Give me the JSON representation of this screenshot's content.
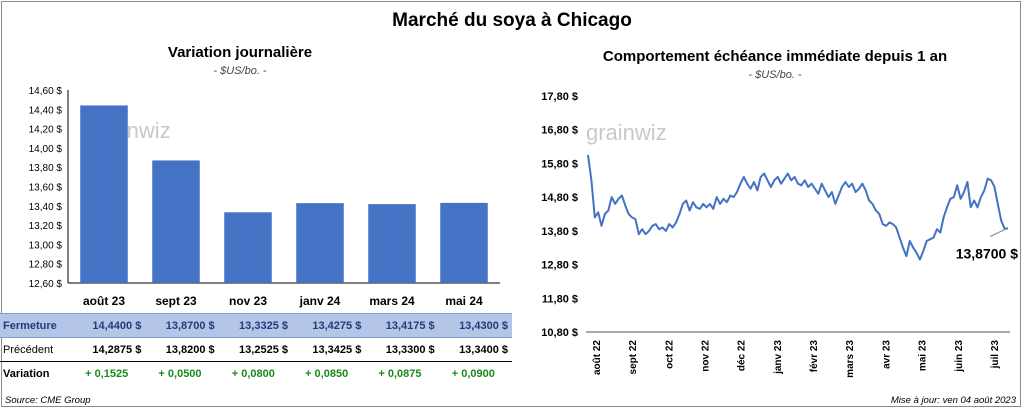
{
  "page": {
    "main_title": "Marché du soya à Chicago",
    "source": "Source: CME Group",
    "updated": "Mise à jour: ven 04 août 2023"
  },
  "colors": {
    "bar": "#4472c4",
    "line": "#4472c4",
    "close_row_bg": "#b4c6e7",
    "variation_green": "#1a8a1a"
  },
  "left_panel": {
    "title": "Variation  journalière",
    "unit": "- $US/bo. -",
    "watermark": "grainwiz",
    "table": {
      "rows": [
        {
          "label": "Fermeture",
          "values": [
            "14,4400  $",
            "13,8700  $",
            "13,3325  $",
            "13,4275  $",
            "13,4175  $",
            "13,4300  $"
          ]
        },
        {
          "label": "Précédent",
          "values": [
            "14,2875  $",
            "13,8200  $",
            "13,2525  $",
            "13,3425  $",
            "13,3300  $",
            "13,3400  $"
          ]
        },
        {
          "label": "Variation",
          "values": [
            "+ 0,1525",
            "+ 0,0500",
            "+ 0,0800",
            "+ 0,0850",
            "+ 0,0875",
            "+ 0,0900"
          ]
        }
      ]
    }
  },
  "right_panel": {
    "title": "Comportement  échéance immédiate depuis 1 an",
    "unit": "- $US/bo. -",
    "watermark": "grainwiz",
    "last_value_label": "13,8700 $"
  },
  "chart_data": [
    {
      "type": "bar",
      "categories": [
        "août 23",
        "sept 23",
        "nov 23",
        "janv 24",
        "mars 24",
        "mai 24"
      ],
      "values": [
        14.44,
        13.87,
        13.3325,
        13.4275,
        13.4175,
        13.43
      ],
      "ylim": [
        12.6,
        14.6
      ],
      "yticks": [
        "12,60 $",
        "12,80 $",
        "13,00 $",
        "13,20 $",
        "13,40 $",
        "13,60 $",
        "13,80 $",
        "14,00 $",
        "14,20 $",
        "14,40 $",
        "14,60 $"
      ],
      "grid": false
    },
    {
      "type": "line",
      "x_labels": [
        "août 22",
        "sept 22",
        "oct 22",
        "nov 22",
        "déc 22",
        "janv 23",
        "févr 23",
        "mars 23",
        "avr 23",
        "mai 23",
        "juin 23",
        "juil 23"
      ],
      "ylim": [
        10.8,
        17.8
      ],
      "yticks": [
        "10,80 $",
        "11,80 $",
        "12,80 $",
        "13,80 $",
        "14,80 $",
        "15,80 $",
        "16,80 $",
        "17,80 $"
      ],
      "grid": false,
      "series": [
        {
          "values": [
            16.05,
            15.3,
            14.2,
            14.35,
            13.95,
            14.3,
            14.4,
            14.8,
            14.6,
            14.75,
            14.85,
            14.55,
            14.3,
            14.2,
            14.15,
            13.7,
            13.85,
            13.7,
            13.8,
            13.95,
            14.0,
            13.85,
            13.9,
            13.8,
            14.0,
            13.9,
            14.05,
            14.3,
            14.6,
            14.7,
            14.4,
            14.65,
            14.5,
            14.45,
            14.6,
            14.5,
            14.6,
            14.45,
            14.8,
            14.6,
            14.75,
            14.65,
            14.85,
            14.8,
            14.95,
            15.2,
            15.4,
            15.2,
            15.05,
            15.25,
            15.0,
            15.4,
            15.5,
            15.3,
            15.1,
            15.3,
            15.4,
            15.2,
            15.35,
            15.5,
            15.3,
            15.4,
            15.2,
            15.15,
            15.3,
            15.1,
            15.2,
            15.05,
            14.9,
            15.2,
            15.0,
            14.8,
            14.95,
            14.6,
            14.85,
            15.1,
            15.25,
            15.1,
            15.2,
            14.95,
            15.05,
            15.2,
            15.0,
            14.7,
            14.6,
            14.4,
            14.3,
            14.0,
            13.95,
            14.05,
            14.0,
            13.9,
            13.6,
            13.3,
            13.05,
            13.5,
            13.3,
            13.15,
            12.95,
            13.2,
            13.5,
            13.55,
            13.6,
            13.85,
            13.75,
            14.2,
            14.5,
            14.75,
            14.8,
            15.15,
            14.75,
            14.95,
            15.25,
            14.5,
            14.7,
            14.5,
            14.8,
            15.0,
            15.35,
            15.3,
            15.1,
            14.6,
            14.1,
            13.87,
            13.87
          ]
        }
      ]
    }
  ]
}
